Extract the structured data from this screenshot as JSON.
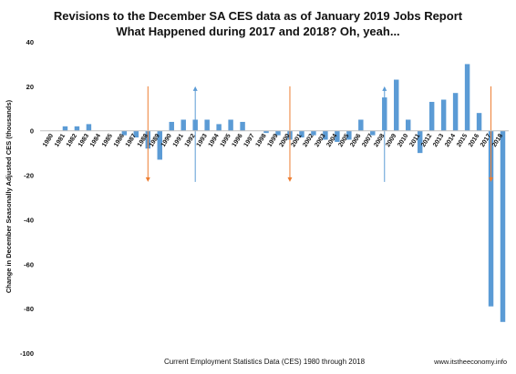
{
  "chart_data": {
    "type": "bar",
    "title_lines": [
      "Revisions to the December SA CES data as of January 2019 Jobs Report",
      "What Happened during 2017 and 2018? Oh, yeah..."
    ],
    "xlabel": "Current Employment Statistics Data (CES) 1980 through 2018",
    "ylabel": "Change in December Seasonally Adjusted CES (thousands)",
    "source_note": "www.itstheeconomy.info",
    "ylim": [
      -100,
      40
    ],
    "yticks": [
      40,
      20,
      0,
      -20,
      -40,
      -60,
      -80,
      -100
    ],
    "grid": false,
    "bar_color": "#5b9bd5",
    "categories": [
      "1980",
      "1981",
      "1982",
      "1983",
      "1984",
      "1985",
      "1986",
      "1987",
      "1988",
      "1989",
      "1990",
      "1991",
      "1992",
      "1993",
      "1994",
      "1995",
      "1996",
      "1997",
      "1998",
      "1999",
      "2000",
      "2001",
      "2002",
      "2003",
      "2004",
      "2005",
      "2006",
      "2007",
      "2008",
      "2009",
      "2010",
      "2011",
      "2012",
      "2013",
      "2014",
      "2015",
      "2016",
      "2017",
      "2018"
    ],
    "values": [
      0,
      2,
      2,
      3,
      0,
      0,
      -2,
      -3,
      -8,
      -13,
      4,
      5,
      5,
      5,
      3,
      5,
      4,
      0,
      -1,
      -2,
      -4,
      -3,
      -2,
      -4,
      -5,
      -4,
      5,
      -2,
      15,
      23,
      5,
      -10,
      13,
      14,
      17,
      30,
      8,
      -79,
      -86
    ],
    "annotations": [
      {
        "type": "arrow",
        "direction": "down",
        "at_category": "1988",
        "from_value": 20,
        "to_value": -23,
        "color": "#ed7d31"
      },
      {
        "type": "arrow",
        "direction": "up",
        "at_category": "1992",
        "from_value": -23,
        "to_value": 20,
        "color": "#5b9bd5"
      },
      {
        "type": "arrow",
        "direction": "down",
        "at_category": "2000",
        "from_value": 20,
        "to_value": -23,
        "color": "#ed7d31"
      },
      {
        "type": "arrow",
        "direction": "up",
        "at_category": "2008",
        "from_value": -23,
        "to_value": 20,
        "color": "#5b9bd5"
      },
      {
        "type": "arrow",
        "direction": "down",
        "at_category": "2017",
        "from_value": 20,
        "to_value": -23,
        "color": "#ed7d31"
      }
    ]
  }
}
